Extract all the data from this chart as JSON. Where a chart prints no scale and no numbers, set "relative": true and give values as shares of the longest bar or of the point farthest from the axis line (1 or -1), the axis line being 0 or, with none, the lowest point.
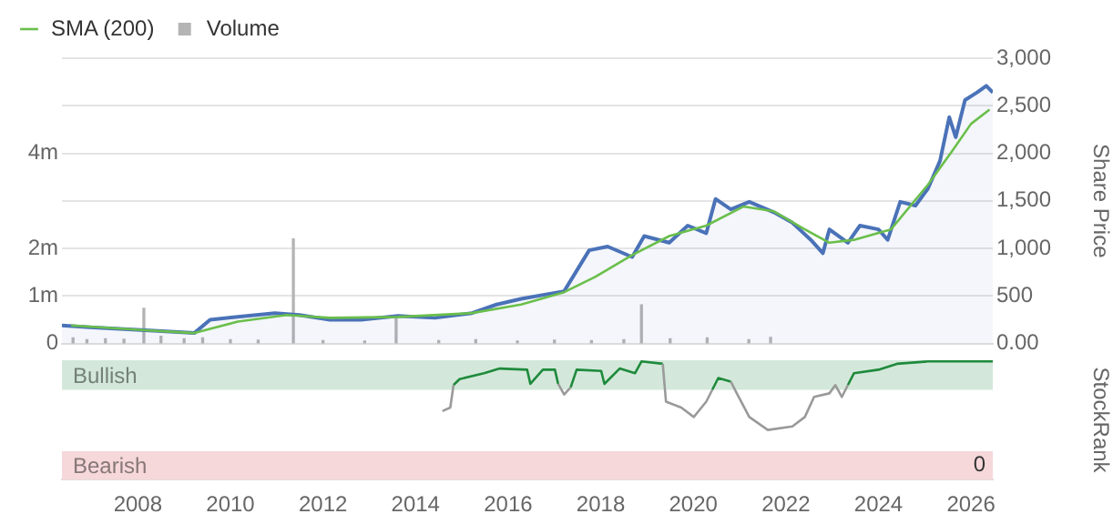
{
  "chart_data": [
    {
      "type": "area",
      "ylabel": "Share Price",
      "legend": "top left",
      "grid": "y",
      "marker": "none",
      "tick_labels": "y",
      "xlim": [
        2006.36,
        2026.47
      ],
      "xticks": [
        2008,
        2010,
        2012,
        2014,
        2016,
        2018,
        2020,
        2022,
        2024,
        2026
      ],
      "ylim": [
        0,
        3000
      ],
      "yticks": [
        {
          "value": 0,
          "label": "0.00"
        },
        500,
        {
          "value": 1000,
          "label": "1,000"
        },
        {
          "value": 1500,
          "label": "1,500"
        },
        {
          "value": 2000,
          "label": "2,000"
        },
        {
          "value": 2500,
          "label": "2,500"
        },
        {
          "value": 3000,
          "label": "3,000"
        }
      ],
      "y2lim": [
        0,
        6
      ],
      "y2ticks": [
        0,
        {
          "value": 1,
          "label": "1m"
        },
        {
          "value": 2,
          "label": "2m"
        },
        {
          "value": 4,
          "label": "4m"
        }
      ],
      "series": [
        {
          "type": "bar",
          "name": "Volume",
          "axis": "y2",
          "color": "#b4b4b4",
          "x": [
            2006.6,
            2006.9,
            2007.3,
            2007.7,
            2008.13,
            2008.5,
            2009.0,
            2009.4,
            2010.0,
            2010.6,
            2011.36,
            2012.0,
            2012.9,
            2013.58,
            2014.5,
            2015.3,
            2016.2,
            2017.0,
            2017.8,
            2018.5,
            2018.88,
            2019.5,
            2020.3,
            2021.2,
            2021.67
          ],
          "values": [
            0.12,
            0.08,
            0.1,
            0.09,
            0.74,
            0.15,
            0.1,
            0.12,
            0.08,
            0.07,
            2.2,
            0.06,
            0.05,
            0.53,
            0.06,
            0.08,
            0.05,
            0.07,
            0.06,
            0.08,
            0.81,
            0.1,
            0.12,
            0.08,
            0.13
          ]
        },
        {
          "color": "#4a72b8",
          "x": [
            2006.36,
            2006.96,
            2008.16,
            2009.22,
            2009.56,
            2010.16,
            2010.96,
            2011.49,
            2012.15,
            2012.82,
            2013.62,
            2014.42,
            2015.22,
            2015.75,
            2016.28,
            2017.21,
            2017.75,
            2018.15,
            2018.68,
            2018.94,
            2019.48,
            2019.88,
            2020.28,
            2020.48,
            2020.81,
            2021.21,
            2021.74,
            2022.14,
            2022.54,
            2022.8,
            2022.94,
            2023.34,
            2023.6,
            2024.0,
            2024.2,
            2024.47,
            2024.8,
            2025.07,
            2025.33,
            2025.53,
            2025.67,
            2025.87,
            2026.13,
            2026.33,
            2026.47
          ],
          "values": [
            190,
            170,
            140,
            110,
            250,
            280,
            320,
            300,
            250,
            250,
            290,
            270,
            320,
            410,
            470,
            550,
            980,
            1020,
            910,
            1130,
            1060,
            1240,
            1160,
            1520,
            1410,
            1490,
            1380,
            1270,
            1090,
            950,
            1200,
            1060,
            1240,
            1200,
            1090,
            1490,
            1450,
            1630,
            1920,
            2380,
            2170,
            2560,
            2640,
            2710,
            2640
          ]
        },
        {
          "type": "line",
          "name": "SMA (200)",
          "color": "#6abf4b",
          "x": [
            2006.56,
            2008.16,
            2009.22,
            2010.16,
            2011.22,
            2012.15,
            2013.62,
            2015.22,
            2016.28,
            2017.21,
            2017.88,
            2018.68,
            2019.48,
            2020.28,
            2021.08,
            2021.74,
            2022.41,
            2022.94,
            2023.47,
            2024.27,
            2025.07,
            2025.6,
            2026.0,
            2026.4
          ],
          "values": [
            190,
            140,
            110,
            230,
            300,
            270,
            280,
            320,
            410,
            540,
            700,
            930,
            1130,
            1240,
            1440,
            1390,
            1200,
            1060,
            1090,
            1200,
            1670,
            2030,
            2310,
            2460
          ]
        }
      ]
    },
    {
      "type": "line",
      "ylabel": "StockRank",
      "marker": "none",
      "relative": true,
      "annotations": [
        "0"
      ],
      "xlim": [
        2006.36,
        2026.47
      ],
      "xticks": [
        2008,
        2010,
        2012,
        2014,
        2016,
        2018,
        2020,
        2022,
        2024,
        2026
      ],
      "bands": [
        {
          "axis": "y",
          "from": 0.76,
          "to": 1.01,
          "label": "Bullish",
          "color": "#d3e8da"
        },
        {
          "axis": "y",
          "from": 0,
          "to": 0.24,
          "label": "Bearish",
          "color": "#f6d8da"
        }
      ],
      "series": [
        {
          "color": "#9a9a9a",
          "x": [
            2014.58,
            2014.75,
            2014.82,
            2014.9,
            2017.08,
            2017.21,
            2017.35,
            2017.4,
            2019.34,
            2019.41,
            2019.74,
            2020.01,
            2020.28,
            2020.41,
            2020.45,
            2020.81,
            2020.94,
            2021.21,
            2021.61,
            2022.14,
            2022.41,
            2022.61,
            2022.94,
            2023.07,
            2023.21,
            2023.34
          ],
          "values": [
            0.58,
            0.61,
            0.8,
            null,
            0.81,
            0.72,
            0.78,
            null,
            0.98,
            0.66,
            0.61,
            0.53,
            0.66,
            0.76,
            null,
            0.83,
            0.73,
            0.53,
            0.42,
            0.45,
            0.53,
            0.7,
            0.73,
            0.8,
            0.7,
            0.8
          ]
        },
        {
          "color": "#1e8a3c",
          "x": [
            2014.82,
            2014.95,
            2015.48,
            2015.82,
            2016.41,
            2016.48,
            2016.75,
            2017.01,
            2017.08,
            2017.15,
            2017.35,
            2017.48,
            2018.01,
            2018.08,
            2018.41,
            2018.74,
            2018.88,
            2019.34,
            2019.38,
            2020.41,
            2020.54,
            2020.81,
            2020.9,
            2023.34,
            2023.47,
            2024.0,
            2024.4,
            2025.07,
            2026.47
          ],
          "values": [
            0.8,
            0.85,
            0.9,
            0.94,
            0.93,
            0.81,
            0.93,
            0.93,
            0.81,
            null,
            0.78,
            0.93,
            0.92,
            0.81,
            0.94,
            0.9,
            1,
            0.98,
            null,
            0.76,
            0.86,
            0.83,
            null,
            0.8,
            0.9,
            0.93,
            0.98,
            1,
            1
          ]
        }
      ]
    }
  ]
}
